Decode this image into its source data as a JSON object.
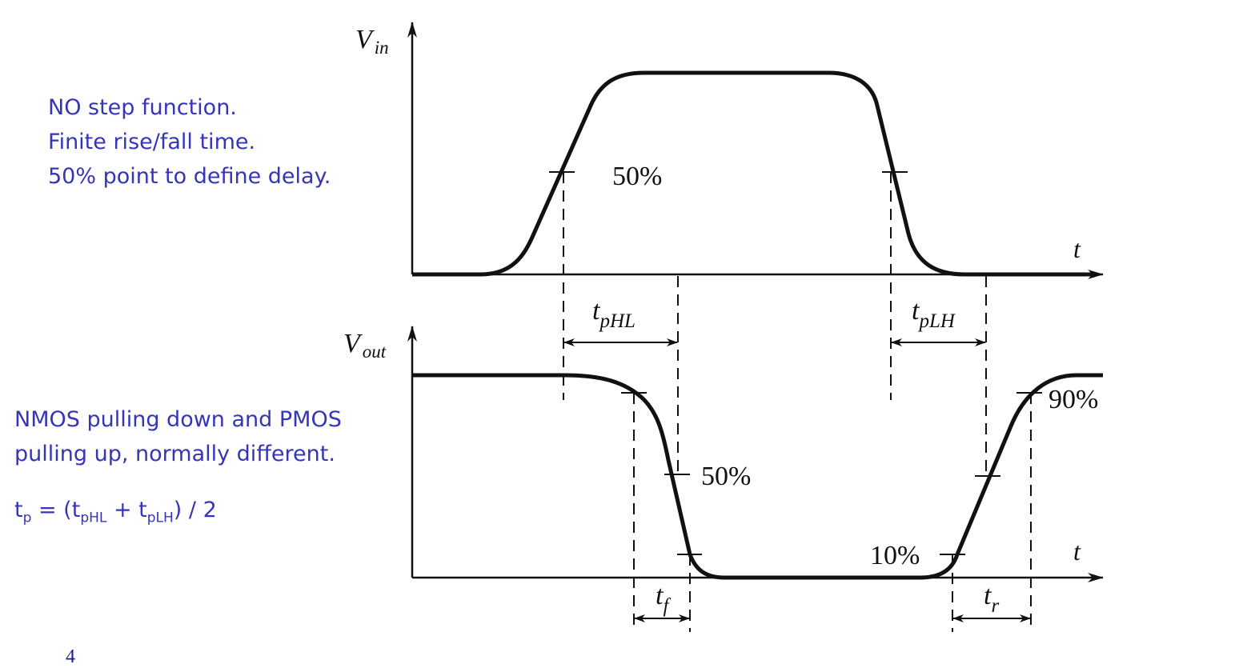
{
  "notes_top": [
    "NO step function.",
    "Finite rise/fall time.",
    "50% point to define delay."
  ],
  "notes_bottom": [
    "NMOS pulling down and PMOS",
    "pulling up, normally different."
  ],
  "formula": {
    "t": "t",
    "p": "p",
    "eq_open": " = (t",
    "phl": "pHL",
    "plus": " + t",
    "plh": "pLH",
    "close": ") / 2"
  },
  "page_number": "4",
  "diagram": {
    "vin_V": "V",
    "vin_sub": "in",
    "vout_V": "V",
    "vout_sub": "out",
    "t_axis": "t",
    "in_50": "50%",
    "out_50": "50%",
    "out_90": "90%",
    "out_10": "10%",
    "tphl_t": "t",
    "tphl_sub": "pHL",
    "tplh_t": "t",
    "tplh_sub": "pLH",
    "tf_t": "t",
    "tf_sub": "f",
    "tr_t": "t",
    "tr_sub": "r"
  },
  "colors": {
    "notes": "#3535b8",
    "ink": "#111111"
  }
}
